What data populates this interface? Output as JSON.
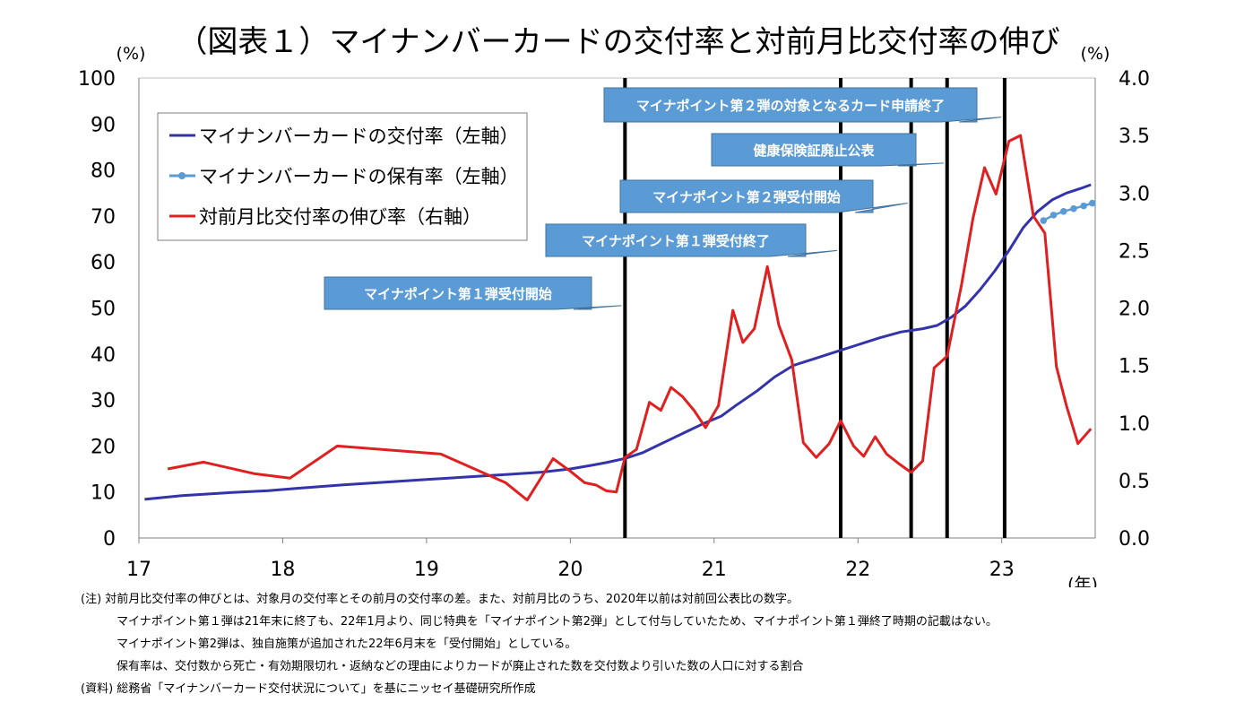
{
  "chart_data": {
    "type": "line",
    "title": "（図表１）マイナンバーカードの交付率と対前月比交付率の伸び",
    "ylabel_left": "(%)",
    "ylabel_right": "(%)",
    "xlabel": "(年)",
    "x_ticks": [
      "17",
      "18",
      "19",
      "20",
      "21",
      "22",
      "23"
    ],
    "x_range": [
      2017.0,
      2023.65
    ],
    "ylim_left": [
      0,
      100
    ],
    "ylim_right": [
      0,
      4.0
    ],
    "y_ticks_left": [
      "0",
      "10",
      "20",
      "30",
      "40",
      "50",
      "60",
      "70",
      "80",
      "90",
      "100"
    ],
    "y_ticks_right": [
      "0.0",
      "0.5",
      "1.0",
      "1.5",
      "2.0",
      "2.5",
      "3.0",
      "3.5",
      "4.0"
    ],
    "grid": false,
    "legend_position": "top-left",
    "series": [
      {
        "name": "マイナンバーカードの交付率（左軸）",
        "axis": "left",
        "color": "#3333aa",
        "marker": false,
        "points": [
          [
            2017.04,
            8.4
          ],
          [
            2017.3,
            9.2
          ],
          [
            2017.6,
            9.8
          ],
          [
            2017.9,
            10.3
          ],
          [
            2018.1,
            10.8
          ],
          [
            2018.4,
            11.5
          ],
          [
            2018.7,
            12.1
          ],
          [
            2019.0,
            12.7
          ],
          [
            2019.3,
            13.3
          ],
          [
            2019.6,
            13.9
          ],
          [
            2019.8,
            14.3
          ],
          [
            2020.0,
            15.0
          ],
          [
            2020.15,
            15.8
          ],
          [
            2020.25,
            16.4
          ],
          [
            2020.38,
            17.3
          ],
          [
            2020.5,
            18.5
          ],
          [
            2020.6,
            20.0
          ],
          [
            2020.7,
            21.5
          ],
          [
            2020.8,
            23.0
          ],
          [
            2020.92,
            24.8
          ],
          [
            2021.05,
            26.5
          ],
          [
            2021.15,
            28.8
          ],
          [
            2021.3,
            32.0
          ],
          [
            2021.42,
            35.0
          ],
          [
            2021.55,
            37.5
          ],
          [
            2021.7,
            39.0
          ],
          [
            2021.85,
            40.5
          ],
          [
            2022.0,
            42.0
          ],
          [
            2022.15,
            43.5
          ],
          [
            2022.3,
            44.8
          ],
          [
            2022.45,
            45.5
          ],
          [
            2022.55,
            46.2
          ],
          [
            2022.65,
            48.0
          ],
          [
            2022.75,
            50.5
          ],
          [
            2022.85,
            54.0
          ],
          [
            2022.95,
            58.0
          ],
          [
            2023.05,
            62.5
          ],
          [
            2023.15,
            67.5
          ],
          [
            2023.25,
            71.0
          ],
          [
            2023.35,
            73.5
          ],
          [
            2023.45,
            75.0
          ],
          [
            2023.55,
            76.0
          ],
          [
            2023.62,
            76.8
          ]
        ]
      },
      {
        "name": "マイナンバーカードの保有率（左軸）",
        "axis": "left",
        "color": "#5b9bd5",
        "marker": true,
        "points": [
          [
            2023.29,
            69.0
          ],
          [
            2023.36,
            70.2
          ],
          [
            2023.43,
            71.0
          ],
          [
            2023.5,
            71.6
          ],
          [
            2023.57,
            72.2
          ],
          [
            2023.63,
            72.8
          ]
        ]
      },
      {
        "name": "対前月比交付率の伸び率（右軸）",
        "axis": "right",
        "color": "#e02020",
        "marker": false,
        "points": [
          [
            2017.2,
            0.6
          ],
          [
            2017.45,
            0.66
          ],
          [
            2017.8,
            0.56
          ],
          [
            2018.05,
            0.52
          ],
          [
            2018.38,
            0.8
          ],
          [
            2019.1,
            0.73
          ],
          [
            2019.55,
            0.48
          ],
          [
            2019.7,
            0.33
          ],
          [
            2019.88,
            0.69
          ],
          [
            2020.0,
            0.58
          ],
          [
            2020.1,
            0.48
          ],
          [
            2020.18,
            0.46
          ],
          [
            2020.25,
            0.41
          ],
          [
            2020.32,
            0.4
          ],
          [
            2020.38,
            0.7
          ],
          [
            2020.46,
            0.77
          ],
          [
            2020.55,
            1.18
          ],
          [
            2020.63,
            1.11
          ],
          [
            2020.7,
            1.31
          ],
          [
            2020.78,
            1.23
          ],
          [
            2020.86,
            1.11
          ],
          [
            2020.94,
            0.96
          ],
          [
            2021.03,
            1.15
          ],
          [
            2021.13,
            1.98
          ],
          [
            2021.2,
            1.7
          ],
          [
            2021.28,
            1.82
          ],
          [
            2021.37,
            2.36
          ],
          [
            2021.45,
            1.85
          ],
          [
            2021.54,
            1.55
          ],
          [
            2021.62,
            0.83
          ],
          [
            2021.71,
            0.7
          ],
          [
            2021.8,
            0.82
          ],
          [
            2021.88,
            1.02
          ],
          [
            2021.97,
            0.8
          ],
          [
            2022.04,
            0.71
          ],
          [
            2022.12,
            0.88
          ],
          [
            2022.2,
            0.73
          ],
          [
            2022.28,
            0.65
          ],
          [
            2022.37,
            0.57
          ],
          [
            2022.45,
            0.67
          ],
          [
            2022.53,
            1.48
          ],
          [
            2022.62,
            1.58
          ],
          [
            2022.72,
            2.2
          ],
          [
            2022.8,
            2.78
          ],
          [
            2022.88,
            3.22
          ],
          [
            2022.96,
            2.99
          ],
          [
            2023.05,
            3.45
          ],
          [
            2023.13,
            3.5
          ],
          [
            2023.22,
            2.8
          ],
          [
            2023.3,
            2.65
          ],
          [
            2023.38,
            1.49
          ],
          [
            2023.45,
            1.15
          ],
          [
            2023.53,
            0.82
          ],
          [
            2023.62,
            0.95
          ]
        ]
      }
    ],
    "vertical_lines": [
      2020.38,
      2021.88,
      2022.37,
      2022.62,
      2023.02
    ],
    "annotations": [
      {
        "text": "マイナポイント第１弾受付開始",
        "target_x": 2020.38,
        "target_y_pct": 50.5
      },
      {
        "text": "マイナポイント第１弾受付終了",
        "target_x": 2021.88,
        "target_y_pct": 62.5
      },
      {
        "text": "マイナポイント第２弾受付開始",
        "target_x": 2022.37,
        "target_y_pct": 72.8
      },
      {
        "text": "健康保険証廃止公表",
        "target_x": 2022.62,
        "target_y_pct": 81.5
      },
      {
        "text": "マイナポイント第２弾の対象となるカード申請終了",
        "target_x": 2023.02,
        "target_y_pct": 91.5
      }
    ]
  },
  "notes": [
    "(注) 対前月比交付率の伸びとは、対象月の交付率とその前月の交付率の差。また、対前月比のうち、2020年以前は対前回公表比の数字。",
    "マイナポイント第１弾は21年末に終了も、22年1月より、同じ特典を「マイナポイント第2弾」として付与していたため、マイナポイント第１弾終了時期の記載はない。",
    "マイナポイント第2弾は、独自施策が追加された22年6月末を「受付開始」としている。",
    "保有率は、交付数から死亡・有効期限切れ・返納などの理由によりカードが廃止された数を交付数より引いた数の人口に対する割合",
    "(資料) 総務省「マイナンバーカード交付状況について」を基にニッセイ基礎研究所作成"
  ]
}
